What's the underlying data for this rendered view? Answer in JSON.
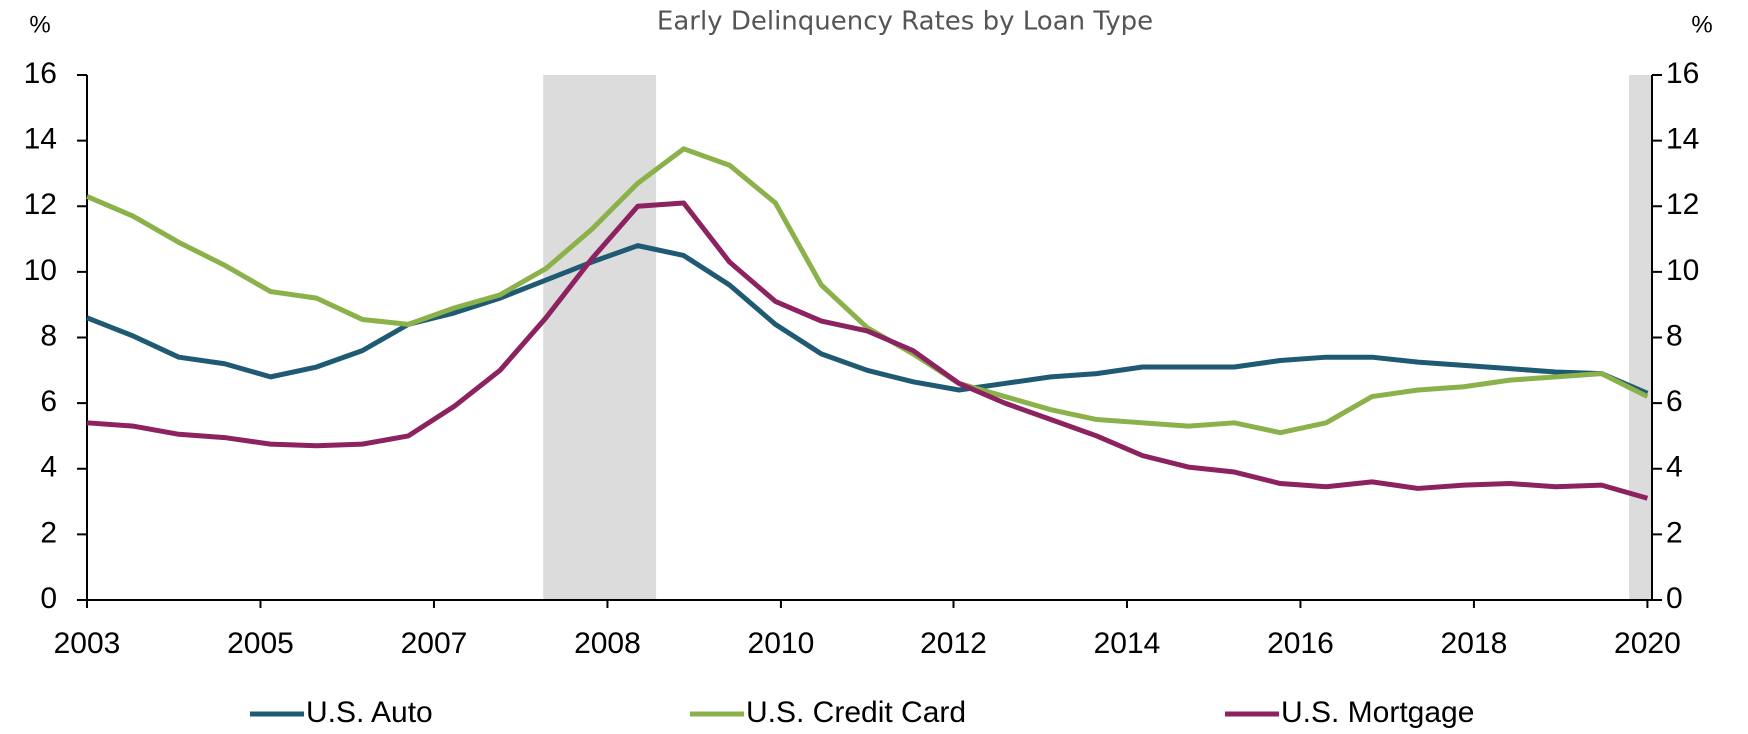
{
  "chart_data": {
    "type": "line",
    "title": "Early Delinquency Rates by Loan Type",
    "y_label": "%",
    "y2_label": "%",
    "x": [
      2003,
      2003.5,
      2004,
      2004.5,
      2005,
      2005.5,
      2006,
      2006.5,
      2007,
      2007.5,
      2008,
      2008.5,
      2009,
      2009.5,
      2010,
      2010.5,
      2011,
      2011.5,
      2012,
      2012.5,
      2013,
      2013.5,
      2014,
      2014.5,
      2015,
      2015.5,
      2016,
      2016.5,
      2017,
      2017.5,
      2018,
      2018.5,
      2019,
      2019.5,
      2020
    ],
    "series": [
      {
        "name": "U.S. Auto",
        "color": "#1f5a73",
        "values": [
          8.6,
          8.05,
          7.4,
          7.2,
          6.8,
          7.1,
          7.6,
          8.4,
          8.75,
          9.2,
          9.75,
          10.3,
          10.8,
          10.5,
          9.6,
          8.4,
          7.5,
          7.0,
          6.65,
          6.4,
          6.6,
          6.8,
          6.9,
          7.1,
          7.1,
          7.1,
          7.3,
          7.4,
          7.4,
          7.25,
          7.15,
          7.05,
          6.95,
          6.9,
          6.3
        ]
      },
      {
        "name": "U.S. Credit Card",
        "color": "#8bb14b",
        "values": [
          12.3,
          11.7,
          10.9,
          10.2,
          9.4,
          9.2,
          8.55,
          8.4,
          8.9,
          9.3,
          10.1,
          11.3,
          12.7,
          13.75,
          13.25,
          12.1,
          9.6,
          8.3,
          7.5,
          6.6,
          6.2,
          5.8,
          5.5,
          5.4,
          5.3,
          5.4,
          5.1,
          5.4,
          6.2,
          6.4,
          6.5,
          6.7,
          6.8,
          6.9,
          6.2
        ]
      },
      {
        "name": "U.S. Mortgage",
        "color": "#8c2260",
        "values": [
          5.4,
          5.3,
          5.05,
          4.95,
          4.75,
          4.7,
          4.75,
          5.0,
          5.9,
          7.0,
          8.6,
          10.4,
          12.0,
          12.1,
          10.3,
          9.1,
          8.5,
          8.2,
          7.6,
          6.6,
          6.0,
          5.5,
          5.0,
          4.4,
          4.05,
          3.9,
          3.55,
          3.45,
          3.6,
          3.4,
          3.5,
          3.55,
          3.45,
          3.5,
          3.1
        ]
      }
    ],
    "shaded_regions": [
      [
        2007.97,
        2009.2
      ],
      [
        2019.8,
        2020.05
      ]
    ],
    "xlim": [
      2003,
      2020.05
    ],
    "xticks": [
      {
        "value": 2003,
        "label": "2003"
      },
      {
        "value": 2004.89,
        "label": "2005"
      },
      {
        "value": 2006.78,
        "label": "2007"
      },
      {
        "value": 2008.67,
        "label": "2008"
      },
      {
        "value": 2010.56,
        "label": "2010"
      },
      {
        "value": 2012.44,
        "label": "2012"
      },
      {
        "value": 2014.33,
        "label": "2014"
      },
      {
        "value": 2016.22,
        "label": "2016"
      },
      {
        "value": 2018.11,
        "label": "2018"
      },
      {
        "value": 2020,
        "label": "2020"
      }
    ],
    "ylim": [
      0,
      16
    ],
    "yticks": [
      0,
      2,
      4,
      6,
      8,
      10,
      12,
      14,
      16
    ],
    "y2lim": [
      0,
      16
    ],
    "y2ticks": [
      0,
      2,
      4,
      6,
      8,
      10,
      12,
      14,
      16
    ],
    "grid": false
  }
}
